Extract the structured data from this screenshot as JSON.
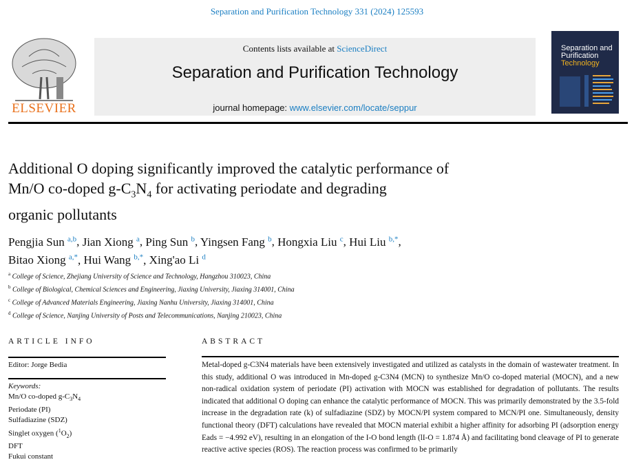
{
  "header": {
    "citation": "Separation and Purification Technology 331 (2024) 125593"
  },
  "banner": {
    "contents_prefix": "Contents lists available at ",
    "contents_link": "ScienceDirect",
    "journal_title": "Separation and Purification Technology",
    "homepage_prefix": "journal homepage: ",
    "homepage_link": "www.elsevier.com/locate/seppur"
  },
  "publisher": {
    "logo_text": "ELSEVIER",
    "logo_color": "#e9711c"
  },
  "cover": {
    "line1": "Separation and",
    "line2": "Purification",
    "line3": "Technology"
  },
  "article": {
    "title_lines": [
      "Additional O doping significantly improved the catalytic performance of",
      "Mn/O co-doped g-C3N4 for activating periodate and degrading",
      "organic pollutants"
    ],
    "authors": [
      {
        "name": "Pengjia Sun",
        "sup": "a,b"
      },
      {
        "name": "Jian Xiong",
        "sup": "a"
      },
      {
        "name": "Ping Sun",
        "sup": "b"
      },
      {
        "name": "Yingsen Fang",
        "sup": "b"
      },
      {
        "name": "Hongxia Liu",
        "sup": "c"
      },
      {
        "name": "Hui Liu",
        "sup": "b,*"
      },
      {
        "name": "Bitao Xiong",
        "sup": "a,*"
      },
      {
        "name": "Hui Wang",
        "sup": "b,*"
      },
      {
        "name": "Xing'ao Li",
        "sup": "d"
      }
    ],
    "affiliations": [
      {
        "sup": "a",
        "text": "College of Science, Zhejiang University of Science and Technology, Hangzhou 310023, China"
      },
      {
        "sup": "b",
        "text": "College of Biological, Chemical Sciences and Engineering, Jiaxing University, Jiaxing 314001, China"
      },
      {
        "sup": "c",
        "text": "College of Advanced Materials Engineering, Jiaxing Nanhu University, Jiaxing 314001, China"
      },
      {
        "sup": "d",
        "text": "College of Science, Nanjing University of Posts and Telecommunications, Nanjing 210023, China"
      }
    ]
  },
  "article_info": {
    "heading": "ARTICLE INFO",
    "editor": "Editor: Jorge Bedia",
    "keywords_label": "Keywords:",
    "keywords": [
      "Mn/O co-doped g-C3N4",
      "Periodate (PI)",
      "Sulfadiazine (SDZ)",
      "Singlet oxygen (1O2)",
      "DFT",
      "Fukui constant"
    ]
  },
  "abstract": {
    "heading": "ABSTRACT",
    "text": "Metal-doped g-C3N4 materials have been extensively investigated and utilized as catalysts in the domain of wastewater treatment. In this study, additional O was introduced in Mn-doped g-C3N4 (MCN) to synthesize Mn/O co-doped material (MOCN), and a new non-radical oxidation system of periodate (PI) activation with MOCN was established for degradation of pollutants. The results indicated that additional O doping can enhance the catalytic performance of MOCN. This was primarily demonstrated by the 3.5-fold increase in the degradation rate (k) of sulfadiazine (SDZ) by MOCN/PI system compared to MCN/PI one. Simultaneously, density functional theory (DFT) calculations have revealed that MOCN material exhibit a higher affinity for adsorbing PI (adsorption energy Eads = −4.992 eV), resulting in an elongation of the I-O bond length (lI-O = 1.874 Å) and facilitating bond cleavage of PI to generate reactive active species (ROS). The reaction process was confirmed to be primarily"
  }
}
